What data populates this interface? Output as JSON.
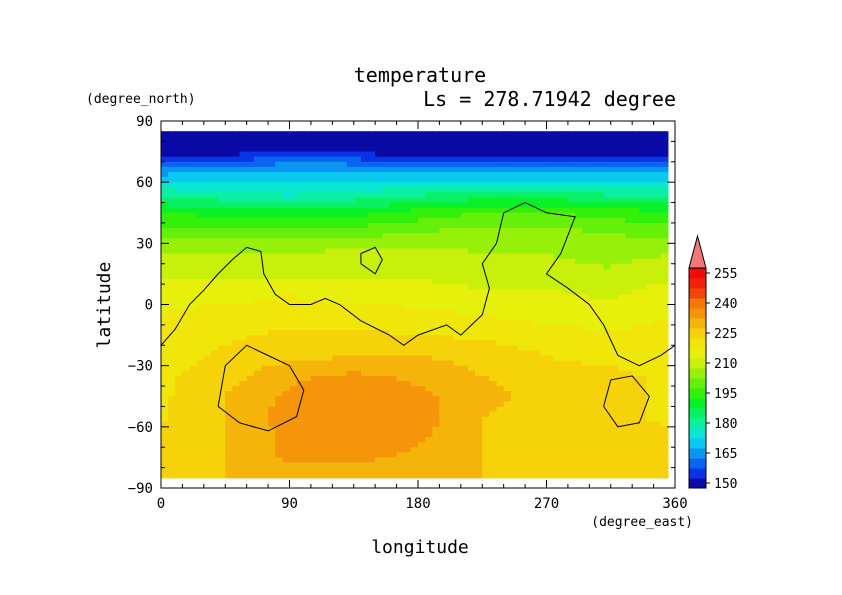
{
  "chart_data": {
    "type": "heatmap",
    "title": "temperature",
    "subtitle": "Ls = 278.71942 degree",
    "xlabel": "longitude",
    "ylabel": "latitude",
    "x_units": "(degree_east)",
    "y_units": "(degree_north)",
    "xlim": [
      0,
      360
    ],
    "ylim": [
      -90,
      90
    ],
    "x_ticks": [
      "0",
      "90",
      "180",
      "270",
      "360"
    ],
    "y_ticks": [
      "90",
      "60",
      "30",
      "0",
      "−30",
      "−60",
      "−90"
    ],
    "colorbar": {
      "labels": [
        "255",
        "240",
        "225",
        "210",
        "195",
        "180",
        "165",
        "150"
      ],
      "levels": [
        150,
        155,
        160,
        165,
        170,
        175,
        180,
        185,
        190,
        195,
        200,
        205,
        210,
        215,
        220,
        225,
        230,
        235,
        240,
        245,
        250,
        255
      ],
      "colors": [
        "#0a0aa6",
        "#0a32e6",
        "#0a64f0",
        "#0a96f0",
        "#0ac8f0",
        "#0ae6d2",
        "#0af0a0",
        "#0af064",
        "#0af028",
        "#32f00a",
        "#64f00a",
        "#96f00a",
        "#c8f00a",
        "#e6f00a",
        "#f0e60a",
        "#f5d20a",
        "#f5b40a",
        "#f5960a",
        "#f5780a",
        "#f0460a",
        "#f0230a",
        "#f00a0a"
      ],
      "extend_color": "#f07878"
    },
    "field": {
      "lats": [
        85,
        75,
        65,
        55,
        45,
        35,
        25,
        15,
        5,
        -5,
        -15,
        -25,
        -35,
        -45,
        -55,
        -65,
        -75,
        -85
      ],
      "lon_step": 45,
      "values": [
        [
          150,
          150,
          150,
          150,
          150,
          150,
          150,
          150,
          150
        ],
        [
          152,
          152,
          155,
          153,
          152,
          151,
          152,
          152,
          152
        ],
        [
          168,
          170,
          172,
          172,
          170,
          168,
          168,
          170,
          168
        ],
        [
          182,
          180,
          178,
          180,
          183,
          185,
          185,
          183,
          182
        ],
        [
          195,
          193,
          192,
          193,
          197,
          200,
          200,
          198,
          195
        ],
        [
          203,
          203,
          202,
          203,
          205,
          208,
          207,
          205,
          203
        ],
        [
          210,
          210,
          210,
          212,
          212,
          210,
          210,
          208,
          210
        ],
        [
          214,
          214,
          213,
          214,
          214,
          212,
          212,
          211,
          214
        ],
        [
          218,
          218,
          220,
          218,
          218,
          216,
          216,
          214,
          218
        ],
        [
          220,
          222,
          222,
          222,
          221,
          220,
          218,
          217,
          220
        ],
        [
          222,
          224,
          226,
          226,
          225,
          224,
          222,
          221,
          222
        ],
        [
          222,
          226,
          228,
          230,
          230,
          228,
          225,
          224,
          222
        ],
        [
          224,
          228,
          234,
          236,
          234,
          230,
          226,
          226,
          224
        ],
        [
          224,
          230,
          236,
          238,
          236,
          232,
          228,
          226,
          224
        ],
        [
          224,
          230,
          238,
          240,
          238,
          230,
          226,
          226,
          224
        ],
        [
          226,
          230,
          236,
          238,
          236,
          230,
          228,
          226,
          226
        ],
        [
          226,
          230,
          236,
          236,
          234,
          230,
          228,
          226,
          226
        ],
        [
          228,
          230,
          232,
          232,
          232,
          230,
          228,
          228,
          228
        ]
      ]
    },
    "contours": [
      {
        "name": "topography",
        "points": [
          [
            0,
            -20
          ],
          [
            10,
            -12
          ],
          [
            20,
            0
          ],
          [
            30,
            7
          ],
          [
            40,
            15
          ],
          [
            50,
            22
          ],
          [
            60,
            28
          ],
          [
            70,
            26
          ],
          [
            72,
            15
          ],
          [
            80,
            5
          ],
          [
            90,
            0
          ],
          [
            105,
            0
          ],
          [
            115,
            3
          ],
          [
            125,
            0
          ],
          [
            140,
            -8
          ],
          [
            160,
            -15
          ],
          [
            170,
            -20
          ],
          [
            180,
            -15
          ],
          [
            200,
            -10
          ],
          [
            210,
            -15
          ],
          [
            225,
            -5
          ],
          [
            230,
            8
          ],
          [
            225,
            20
          ],
          [
            235,
            30
          ],
          [
            240,
            45
          ],
          [
            255,
            50
          ],
          [
            270,
            45
          ],
          [
            290,
            43
          ],
          [
            280,
            25
          ],
          [
            270,
            15
          ],
          [
            285,
            8
          ],
          [
            300,
            0
          ],
          [
            310,
            -10
          ],
          [
            320,
            -25
          ],
          [
            335,
            -30
          ],
          [
            350,
            -25
          ],
          [
            360,
            -20
          ]
        ]
      },
      {
        "name": "topography",
        "points": [
          [
            140,
            20
          ],
          [
            150,
            15
          ],
          [
            155,
            22
          ],
          [
            150,
            28
          ],
          [
            140,
            25
          ],
          [
            140,
            20
          ]
        ]
      },
      {
        "name": "topography",
        "points": [
          [
            40,
            -50
          ],
          [
            45,
            -30
          ],
          [
            60,
            -20
          ],
          [
            75,
            -25
          ],
          [
            90,
            -30
          ],
          [
            100,
            -42
          ],
          [
            95,
            -55
          ],
          [
            75,
            -62
          ],
          [
            55,
            -58
          ],
          [
            40,
            -50
          ]
        ]
      },
      {
        "name": "topography",
        "points": [
          [
            310,
            -50
          ],
          [
            315,
            -37
          ],
          [
            330,
            -35
          ],
          [
            342,
            -45
          ],
          [
            335,
            -58
          ],
          [
            320,
            -60
          ],
          [
            310,
            -50
          ]
        ]
      }
    ],
    "grid": false,
    "legend": "colorbar-right"
  }
}
